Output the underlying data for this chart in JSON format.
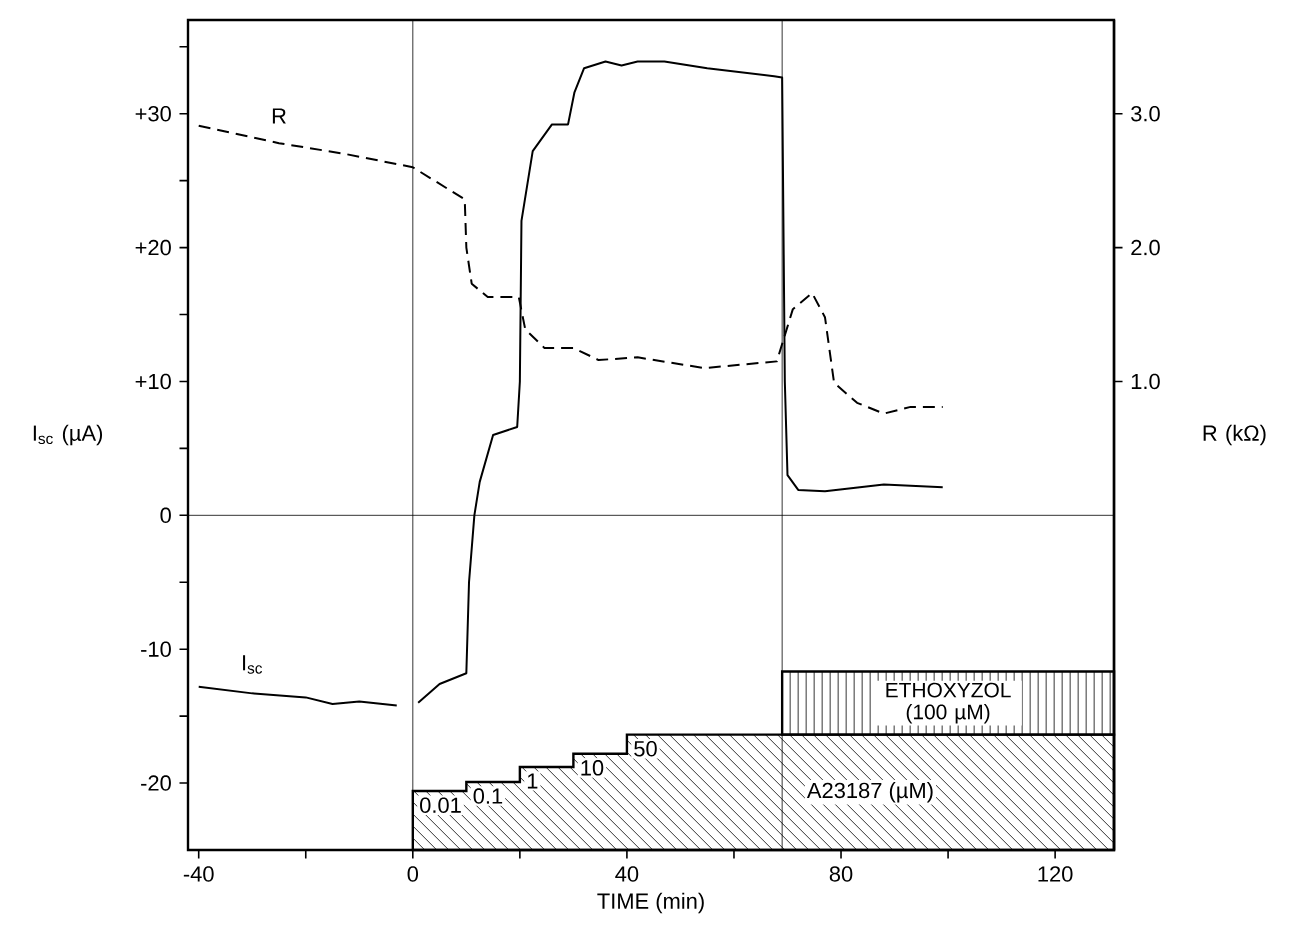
{
  "chart_data": {
    "type": "line",
    "xlabel": "TIME (min)",
    "ylabel": "I$_{sc}$ (µA)",
    "y2label": "R (kΩ)",
    "xlim": [
      -42,
      131
    ],
    "xticks": [
      -40,
      {
        "value": -20,
        "label": null
      },
      0,
      {
        "value": 20,
        "label": null
      },
      40,
      {
        "value": 60,
        "label": null
      },
      80,
      {
        "value": 100,
        "label": null
      },
      120
    ],
    "ylim": [
      -25,
      37
    ],
    "yticks": [
      -20,
      {
        "value": -15,
        "label": null
      },
      -10,
      {
        "value": -5,
        "label": null
      },
      0,
      {
        "value": 5,
        "label": null
      },
      {
        "value": 10,
        "label": "+10"
      },
      {
        "value": 15,
        "label": null
      },
      {
        "value": 20,
        "label": "+20"
      },
      {
        "value": 25,
        "label": null
      },
      {
        "value": 30,
        "label": "+30"
      },
      {
        "value": 35,
        "label": null
      }
    ],
    "y2lim": [
      -2.5,
      3.7
    ],
    "y2ticks": [
      {
        "value": 1,
        "label": "1.0"
      },
      {
        "value": 2,
        "label": "2.0"
      },
      {
        "value": 3,
        "label": "3.0"
      }
    ],
    "grid": false,
    "marker": "none",
    "series": [
      {
        "name": "I$_{sc}$",
        "color": "#000000",
        "line_style": "solid",
        "x": [
          -40,
          -30,
          -20,
          -15,
          -10,
          -3,
          0,
          1,
          5,
          10,
          10.5,
          11.5,
          12.5,
          15,
          19.5,
          20,
          20.3,
          22.4,
          26,
          29,
          30.2,
          32,
          36,
          39,
          42,
          47,
          55,
          67.5,
          69,
          69.5,
          70,
          72,
          77,
          88,
          99
        ],
        "values": [
          -12.8,
          -13.3,
          -13.6,
          -14.1,
          -13.9,
          -14.2,
          null,
          -14,
          -12.6,
          -11.8,
          -5,
          0,
          2.5,
          6,
          6.6,
          10,
          22,
          27.2,
          29.2,
          29.2,
          31.6,
          33.4,
          33.9,
          33.6,
          33.9,
          33.9,
          33.4,
          32.8,
          32.7,
          10,
          3,
          1.9,
          1.8,
          2.3,
          2.1
        ]
      },
      {
        "name": "R",
        "color": "#000000",
        "line_style": "dashed",
        "axis": "y2",
        "x": [
          -40,
          -25,
          -12.7,
          0,
          9.7,
          10,
          11,
          14,
          19.8,
          21,
          24.6,
          30,
          34.7,
          42,
          54.5,
          68,
          71,
          74.6,
          77,
          78.7,
          83,
          88,
          93,
          99
        ],
        "values": [
          2.91,
          2.78,
          2.7,
          2.6,
          2.36,
          2.0,
          1.73,
          1.63,
          1.63,
          1.39,
          1.25,
          1.25,
          1.16,
          1.18,
          1.1,
          1.15,
          1.54,
          1.66,
          1.48,
          0.99,
          0.84,
          0.76,
          0.81,
          0.81
        ]
      }
    ],
    "ref_lines": [
      {
        "axis": "x",
        "value": 0
      },
      {
        "axis": "x",
        "value": 69
      },
      {
        "axis": "y",
        "value": 0
      }
    ],
    "annotations": [
      "0.01",
      "0.1",
      "1",
      "10",
      "50",
      "A23187 (µM)",
      "ETHOXYZOL (100 µM)"
    ]
  }
}
